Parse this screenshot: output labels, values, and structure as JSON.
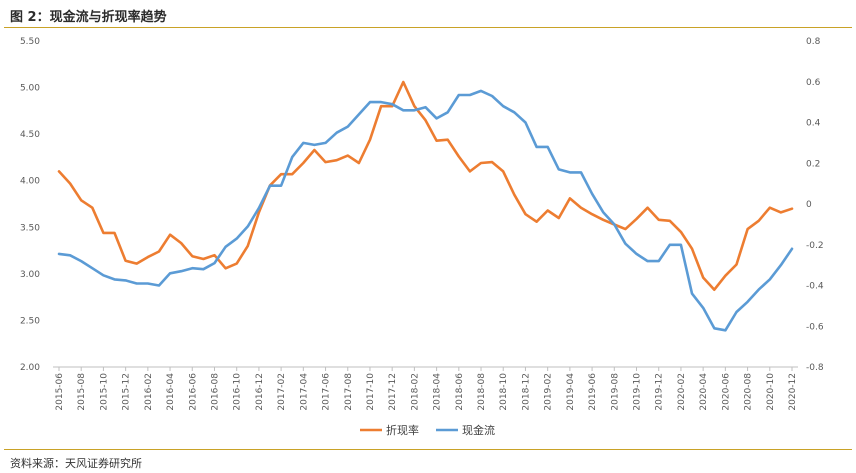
{
  "title": "图 2：现金流与折现率趋势",
  "source": "资料来源：天风证券研究所",
  "colors": {
    "discount": "#ED7D31",
    "cashflow": "#5B9BD5",
    "accent": "#C9A227"
  },
  "chart_data": {
    "type": "line",
    "title": "",
    "xlabel": "",
    "ylabel": "",
    "ylim": [
      2.0,
      5.5
    ],
    "y2lim": [
      -0.8,
      0.8
    ],
    "left_ticks": [
      "5.50",
      "5.00",
      "4.50",
      "4.00",
      "3.50",
      "3.00",
      "2.50",
      "2.00"
    ],
    "right_ticks": [
      "0.8",
      "0.6",
      "0.4",
      "0.2",
      "0",
      "-0.2",
      "-0.4",
      "-0.6",
      "-0.8"
    ],
    "grid": false,
    "legend_position": "bottom",
    "x": [
      "2015-06",
      "2015-07",
      "2015-08",
      "2015-09",
      "2015-10",
      "2015-11",
      "2015-12",
      "2016-01",
      "2016-02",
      "2016-03",
      "2016-04",
      "2016-05",
      "2016-06",
      "2016-07",
      "2016-08",
      "2016-09",
      "2016-10",
      "2016-11",
      "2016-12",
      "2017-01",
      "2017-02",
      "2017-03",
      "2017-04",
      "2017-05",
      "2017-06",
      "2017-07",
      "2017-08",
      "2017-09",
      "2017-10",
      "2017-11",
      "2017-12",
      "2018-01",
      "2018-02",
      "2018-03",
      "2018-04",
      "2018-05",
      "2018-06",
      "2018-07",
      "2018-08",
      "2018-09",
      "2018-10",
      "2018-11",
      "2018-12",
      "2019-01",
      "2019-02",
      "2019-03",
      "2019-04",
      "2019-05",
      "2019-06",
      "2019-07",
      "2019-08",
      "2019-09",
      "2019-10",
      "2019-11",
      "2019-12",
      "2020-01",
      "2020-02",
      "2020-03",
      "2020-04",
      "2020-05",
      "2020-06",
      "2020-07",
      "2020-08",
      "2020-09",
      "2020-10",
      "2020-11",
      "2020-12"
    ],
    "x_tick_labels": [
      "2015-06",
      "2015-08",
      "2015-10",
      "2015-12",
      "2016-02",
      "2016-04",
      "2016-06",
      "2016-08",
      "2016-10",
      "2016-12",
      "2017-02",
      "2017-04",
      "2017-06",
      "2017-08",
      "2017-10",
      "2017-12",
      "2018-02",
      "2018-04",
      "2018-06",
      "2018-08",
      "2018-10",
      "2018-12",
      "2019-02",
      "2019-04",
      "2019-06",
      "2019-08",
      "2019-10",
      "2019-12",
      "2020-02",
      "2020-04",
      "2020-06",
      "2020-08",
      "2020-10",
      "2020-12"
    ],
    "series": [
      {
        "name": "折现率",
        "axis": "left",
        "values": [
          4.1,
          3.97,
          3.79,
          3.71,
          3.44,
          3.44,
          3.14,
          3.11,
          3.18,
          3.24,
          3.42,
          3.33,
          3.19,
          3.16,
          3.2,
          3.06,
          3.11,
          3.3,
          3.66,
          3.95,
          4.07,
          4.07,
          4.19,
          4.33,
          4.2,
          4.22,
          4.27,
          4.19,
          4.44,
          4.8,
          4.8,
          5.06,
          4.8,
          4.65,
          4.43,
          4.44,
          4.26,
          4.1,
          4.19,
          4.2,
          4.1,
          3.85,
          3.64,
          3.56,
          3.68,
          3.6,
          3.81,
          3.71,
          3.64,
          3.58,
          3.53,
          3.48,
          3.59,
          3.71,
          3.58,
          3.57,
          3.45,
          3.27,
          2.96,
          2.83,
          2.98,
          3.1,
          3.48,
          3.57,
          3.71,
          3.66,
          3.7
        ]
      },
      {
        "name": "现金流",
        "axis": "right",
        "values": [
          -0.245,
          -0.252,
          -0.28,
          -0.315,
          -0.35,
          -0.37,
          -0.375,
          -0.39,
          -0.39,
          -0.4,
          -0.34,
          -0.33,
          -0.315,
          -0.32,
          -0.29,
          -0.21,
          -0.17,
          -0.11,
          -0.02,
          0.09,
          0.09,
          0.23,
          0.3,
          0.29,
          0.3,
          0.35,
          0.38,
          0.44,
          0.5,
          0.5,
          0.49,
          0.46,
          0.46,
          0.475,
          0.42,
          0.45,
          0.535,
          0.535,
          0.555,
          0.53,
          0.48,
          0.45,
          0.4,
          0.28,
          0.28,
          0.17,
          0.155,
          0.155,
          0.05,
          -0.04,
          -0.1,
          -0.195,
          -0.245,
          -0.28,
          -0.28,
          -0.2,
          -0.2,
          -0.44,
          -0.51,
          -0.61,
          -0.62,
          -0.53,
          -0.48,
          -0.42,
          -0.37,
          -0.3,
          -0.22
        ]
      }
    ]
  }
}
